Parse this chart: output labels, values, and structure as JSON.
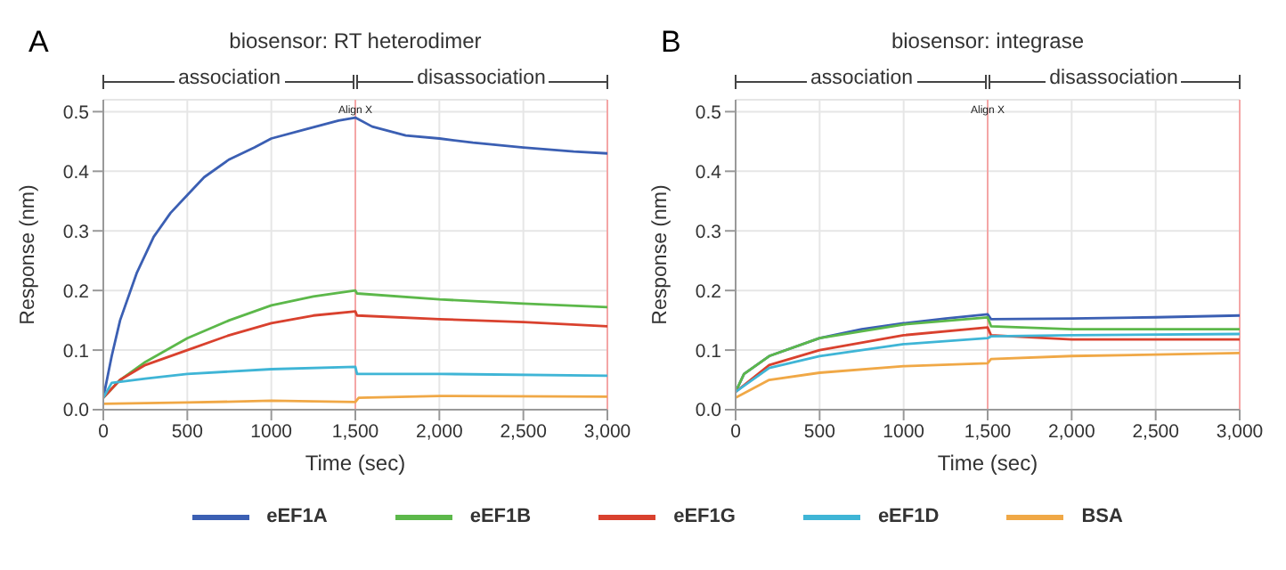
{
  "chart_data": [
    {
      "type": "line",
      "title": "biosensor: RT heterodimer",
      "xlabel": "Time (sec)",
      "ylabel": "Response (nm)",
      "annotations": [
        "A",
        "association",
        "disassociation"
      ],
      "xlim": [
        0,
        3000
      ],
      "xticks": [
        0,
        500,
        1000,
        {
          "value": 1500,
          "label": "1,500"
        },
        {
          "value": 2000,
          "label": "2,000"
        },
        {
          "value": 2500,
          "label": "2,500"
        },
        {
          "value": 3000,
          "label": "3,000"
        }
      ],
      "ylim": [
        0,
        0.52
      ],
      "yticks": [
        {
          "value": 0,
          "label": "0.0"
        },
        0.1,
        0.2,
        0.3,
        0.4,
        0.5
      ],
      "grid": true,
      "legend": "bottom",
      "marker": "none",
      "line_style": "solid",
      "ref_lines": [
        {
          "axis": "x",
          "value": 1500,
          "label": "Align X",
          "color": "#f4a6a6"
        },
        {
          "axis": "x",
          "value": 3000,
          "label": null,
          "color": "#f4a6a6"
        }
      ],
      "series": [
        {
          "name": "eEF1A",
          "color": "#3b5fb3",
          "x": [
            0,
            50,
            100,
            200,
            300,
            400,
            500,
            600,
            750,
            900,
            1000,
            1200,
            1400,
            1500,
            1600,
            1800,
            2000,
            2200,
            2500,
            2800,
            3000
          ],
          "values": [
            0.02,
            0.09,
            0.15,
            0.23,
            0.29,
            0.33,
            0.36,
            0.39,
            0.42,
            0.44,
            0.455,
            0.47,
            0.485,
            0.49,
            0.475,
            0.46,
            0.455,
            0.448,
            0.44,
            0.433,
            0.43
          ]
        },
        {
          "name": "eEF1B",
          "color": "#5cb84a",
          "x": [
            0,
            100,
            250,
            500,
            750,
            1000,
            1250,
            1500,
            1510,
            2000,
            2500,
            3000
          ],
          "values": [
            0.02,
            0.05,
            0.08,
            0.12,
            0.15,
            0.175,
            0.19,
            0.2,
            0.195,
            0.185,
            0.178,
            0.172
          ]
        },
        {
          "name": "eEF1G",
          "color": "#d9412e",
          "x": [
            0,
            100,
            250,
            500,
            750,
            1000,
            1250,
            1500,
            1510,
            2000,
            2500,
            3000
          ],
          "values": [
            0.02,
            0.05,
            0.075,
            0.1,
            0.125,
            0.145,
            0.158,
            0.165,
            0.158,
            0.152,
            0.147,
            0.14
          ]
        },
        {
          "name": "eEF1D",
          "color": "#3fb5d6",
          "x": [
            0,
            50,
            250,
            500,
            1000,
            1500,
            1510,
            2000,
            3000
          ],
          "values": [
            0.02,
            0.045,
            0.052,
            0.06,
            0.068,
            0.072,
            0.06,
            0.06,
            0.057
          ]
        },
        {
          "name": "BSA",
          "color": "#f0a846",
          "x": [
            0,
            500,
            1000,
            1500,
            1520,
            2000,
            3000
          ],
          "values": [
            0.01,
            0.012,
            0.015,
            0.013,
            0.02,
            0.023,
            0.022
          ]
        }
      ]
    },
    {
      "type": "line",
      "title": "biosensor: integrase",
      "xlabel": "Time (sec)",
      "ylabel": "Response (nm)",
      "annotations": [
        "B",
        "association",
        "disassociation"
      ],
      "xlim": [
        0,
        3000
      ],
      "xticks": [
        0,
        500,
        1000,
        {
          "value": 1500,
          "label": "1,500"
        },
        {
          "value": 2000,
          "label": "2,000"
        },
        {
          "value": 2500,
          "label": "2,500"
        },
        {
          "value": 3000,
          "label": "3,000"
        }
      ],
      "ylim": [
        0,
        0.52
      ],
      "yticks": [
        {
          "value": 0,
          "label": "0.0"
        },
        0.1,
        0.2,
        0.3,
        0.4,
        0.5
      ],
      "grid": true,
      "marker": "none",
      "line_style": "solid",
      "ref_lines": [
        {
          "axis": "x",
          "value": 1500,
          "label": "Align X",
          "color": "#f4a6a6"
        },
        {
          "axis": "x",
          "value": 3000,
          "label": null,
          "color": "#f4a6a6"
        }
      ],
      "series": [
        {
          "color": "#3b5fb3",
          "x": [
            0,
            50,
            200,
            500,
            750,
            1000,
            1250,
            1500,
            1520,
            2000,
            2500,
            3000
          ],
          "values": [
            0.03,
            0.06,
            0.09,
            0.12,
            0.135,
            0.145,
            0.153,
            0.16,
            0.152,
            0.153,
            0.155,
            0.158
          ]
        },
        {
          "color": "#5cb84a",
          "x": [
            0,
            50,
            200,
            500,
            1000,
            1500,
            1520,
            2000,
            3000
          ],
          "values": [
            0.03,
            0.06,
            0.09,
            0.12,
            0.143,
            0.155,
            0.14,
            0.135,
            0.135
          ]
        },
        {
          "color": "#d9412e",
          "x": [
            0,
            200,
            500,
            1000,
            1500,
            1520,
            2000,
            3000
          ],
          "values": [
            0.03,
            0.075,
            0.1,
            0.125,
            0.138,
            0.125,
            0.118,
            0.118
          ]
        },
        {
          "color": "#3fb5d6",
          "x": [
            0,
            200,
            500,
            1000,
            1500,
            1520,
            2000,
            3000
          ],
          "values": [
            0.03,
            0.07,
            0.09,
            0.11,
            0.12,
            0.123,
            0.125,
            0.127
          ]
        },
        {
          "color": "#f0a846",
          "x": [
            0,
            200,
            500,
            1000,
            1500,
            1520,
            2000,
            3000
          ],
          "values": [
            0.02,
            0.05,
            0.062,
            0.073,
            0.078,
            0.085,
            0.09,
            0.095
          ]
        }
      ]
    }
  ]
}
